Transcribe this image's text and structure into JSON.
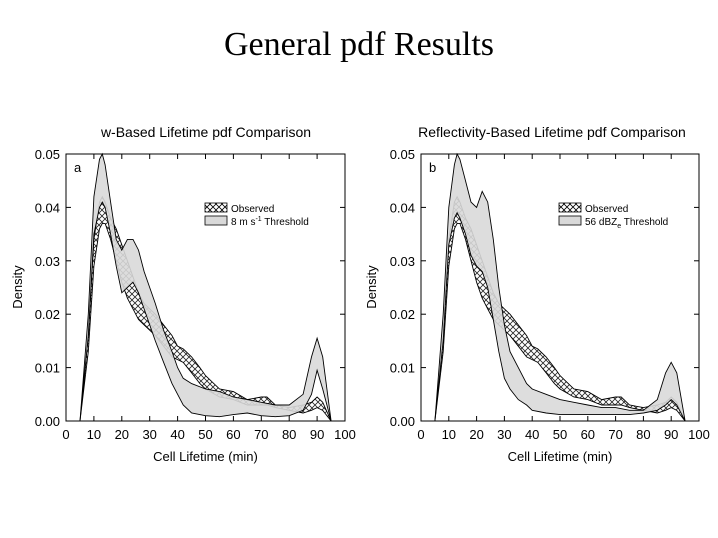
{
  "page": {
    "title": "General pdf Results"
  },
  "chart_data": [
    {
      "type": "area",
      "title": "w-Based Lifetime pdf Comparison",
      "panel_label": "a",
      "xlabel": "Cell Lifetime (min)",
      "ylabel": "Density",
      "xlim": [
        0,
        100
      ],
      "ylim": [
        0,
        0.05
      ],
      "xticks": [
        0,
        10,
        20,
        30,
        40,
        50,
        60,
        70,
        80,
        90,
        100
      ],
      "yticks": [
        0.0,
        0.01,
        0.02,
        0.03,
        0.04,
        0.05
      ],
      "ytick_labels": [
        "0.00",
        "0.01",
        "0.02",
        "0.03",
        "0.04",
        "0.05"
      ],
      "legend": {
        "placement": "upper-right",
        "entries": [
          "Observed",
          "8 m s-1 Threshold"
        ]
      },
      "series": [
        {
          "name": "Observed",
          "style": "crosshatch",
          "x": [
            5,
            8,
            10,
            12,
            13,
            14,
            16,
            18,
            20,
            22,
            24,
            26,
            28,
            30,
            32,
            35,
            38,
            40,
            42,
            45,
            48,
            50,
            55,
            60,
            65,
            70,
            72,
            75,
            80,
            85,
            88,
            90,
            92,
            95
          ],
          "upper": [
            0,
            0.016,
            0.034,
            0.041,
            0.042,
            0.041,
            0.038,
            0.036,
            0.033,
            0.03,
            0.027,
            0.024,
            0.022,
            0.021,
            0.02,
            0.018,
            0.016,
            0.014,
            0.0135,
            0.012,
            0.01,
            0.0085,
            0.006,
            0.0055,
            0.004,
            0.0045,
            0.0045,
            0.003,
            0.0025,
            0.003,
            0.0035,
            0.0045,
            0.0035,
            0
          ],
          "lower": [
            0,
            0.013,
            0.029,
            0.036,
            0.037,
            0.037,
            0.034,
            0.03,
            0.026,
            0.023,
            0.021,
            0.019,
            0.018,
            0.017,
            0.016,
            0.014,
            0.012,
            0.0115,
            0.011,
            0.009,
            0.007,
            0.006,
            0.0045,
            0.004,
            0.003,
            0.003,
            0.003,
            0.0025,
            0.002,
            0.0015,
            0.002,
            0.0025,
            0.002,
            0
          ]
        },
        {
          "name": "8 m s-1 Threshold",
          "style": "gray",
          "x": [
            5,
            8,
            10,
            12,
            13,
            14,
            16,
            18,
            20,
            22,
            24,
            26,
            28,
            30,
            32,
            35,
            38,
            40,
            42,
            45,
            50,
            55,
            60,
            65,
            70,
            75,
            80,
            85,
            88,
            90,
            92,
            95
          ],
          "upper": [
            0,
            0.02,
            0.042,
            0.049,
            0.05,
            0.048,
            0.041,
            0.034,
            0.032,
            0.034,
            0.034,
            0.032,
            0.028,
            0.025,
            0.022,
            0.017,
            0.013,
            0.01,
            0.008,
            0.007,
            0.006,
            0.0055,
            0.0045,
            0.004,
            0.0035,
            0.003,
            0.003,
            0.005,
            0.012,
            0.0155,
            0.012,
            0
          ],
          "lower": [
            0,
            0.016,
            0.035,
            0.04,
            0.041,
            0.04,
            0.035,
            0.029,
            0.024,
            0.025,
            0.026,
            0.024,
            0.021,
            0.018,
            0.015,
            0.011,
            0.007,
            0.005,
            0.003,
            0.0015,
            0.001,
            0.0008,
            0.0012,
            0.0015,
            0.001,
            0.0008,
            0.001,
            0.002,
            0.005,
            0.0095,
            0.006,
            0
          ]
        }
      ]
    },
    {
      "type": "area",
      "title": "Reflectivity-Based Lifetime pdf Comparison",
      "panel_label": "b",
      "xlabel": "Cell Lifetime (min)",
      "ylabel": "Density",
      "xlim": [
        0,
        100
      ],
      "ylim": [
        0,
        0.05
      ],
      "xticks": [
        0,
        10,
        20,
        30,
        40,
        50,
        60,
        70,
        80,
        90,
        100
      ],
      "yticks": [
        0.0,
        0.01,
        0.02,
        0.03,
        0.04,
        0.05
      ],
      "ytick_labels": [
        "0.00",
        "0.01",
        "0.02",
        "0.03",
        "0.04",
        "0.05"
      ],
      "legend": {
        "placement": "upper-right",
        "entries": [
          "Observed",
          "56 dBZe Threshold"
        ]
      },
      "series": [
        {
          "name": "Observed",
          "style": "crosshatch",
          "x": [
            5,
            8,
            10,
            12,
            13,
            14,
            16,
            18,
            20,
            22,
            24,
            26,
            28,
            30,
            32,
            35,
            38,
            40,
            42,
            45,
            48,
            50,
            55,
            60,
            65,
            70,
            72,
            75,
            80,
            85,
            88,
            90,
            92,
            95
          ],
          "upper": [
            0,
            0.016,
            0.034,
            0.041,
            0.042,
            0.041,
            0.038,
            0.036,
            0.033,
            0.03,
            0.027,
            0.024,
            0.022,
            0.021,
            0.02,
            0.018,
            0.016,
            0.014,
            0.0135,
            0.012,
            0.01,
            0.0085,
            0.006,
            0.0055,
            0.004,
            0.0045,
            0.0045,
            0.003,
            0.0025,
            0.003,
            0.0035,
            0.0045,
            0.0035,
            0
          ],
          "lower": [
            0,
            0.013,
            0.029,
            0.036,
            0.037,
            0.037,
            0.034,
            0.03,
            0.026,
            0.023,
            0.021,
            0.019,
            0.018,
            0.017,
            0.016,
            0.014,
            0.012,
            0.0115,
            0.011,
            0.009,
            0.007,
            0.006,
            0.0045,
            0.004,
            0.003,
            0.003,
            0.003,
            0.0025,
            0.002,
            0.0015,
            0.002,
            0.0025,
            0.002,
            0
          ]
        },
        {
          "name": "56 dBZe Threshold",
          "style": "gray",
          "x": [
            5,
            8,
            10,
            12,
            13,
            14,
            16,
            18,
            20,
            22,
            24,
            26,
            28,
            30,
            32,
            35,
            38,
            40,
            45,
            50,
            55,
            60,
            65,
            70,
            75,
            80,
            85,
            88,
            90,
            92,
            95
          ],
          "upper": [
            0,
            0.02,
            0.04,
            0.048,
            0.05,
            0.049,
            0.045,
            0.041,
            0.04,
            0.043,
            0.041,
            0.034,
            0.025,
            0.018,
            0.013,
            0.01,
            0.007,
            0.006,
            0.005,
            0.004,
            0.0035,
            0.003,
            0.0025,
            0.0025,
            0.002,
            0.002,
            0.004,
            0.009,
            0.011,
            0.009,
            0
          ],
          "lower": [
            0,
            0.015,
            0.033,
            0.038,
            0.039,
            0.038,
            0.035,
            0.031,
            0.029,
            0.028,
            0.025,
            0.019,
            0.013,
            0.008,
            0.006,
            0.004,
            0.003,
            0.002,
            0.0015,
            0.0012,
            0.0012,
            0.0012,
            0.0012,
            0.0012,
            0.0012,
            0.0015,
            0.002,
            0.003,
            0.004,
            0.003,
            0
          ]
        }
      ]
    }
  ]
}
